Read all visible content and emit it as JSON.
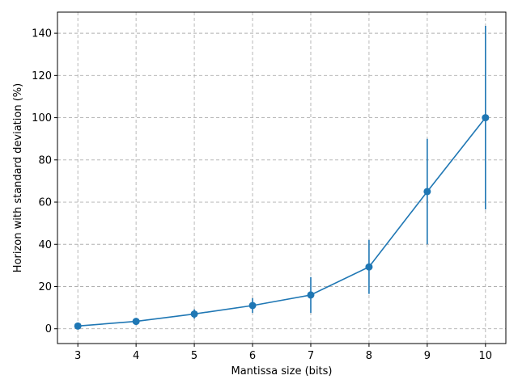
{
  "chart_data": {
    "type": "line",
    "title": "",
    "xlabel": "Mantissa size (bits)",
    "ylabel": "Horizon with standard deviation (%)",
    "xlim": [
      2.65,
      10.35
    ],
    "ylim": [
      -7,
      150
    ],
    "x_ticks": [
      3,
      4,
      5,
      6,
      7,
      8,
      9,
      10
    ],
    "y_ticks": [
      0,
      20,
      40,
      60,
      80,
      100,
      120,
      140
    ],
    "grid": true,
    "series": [
      {
        "color": "#1f77b4",
        "marker": "circle",
        "x": [
          3,
          4,
          5,
          6,
          7,
          8,
          9,
          10
        ],
        "y": [
          1.3,
          3.5,
          7.0,
          11.0,
          16.0,
          29.3,
          65.0,
          100.0
        ],
        "yerr": [
          0.5,
          1.0,
          2.2,
          3.5,
          8.5,
          12.8,
          25.0,
          43.5
        ]
      }
    ]
  }
}
